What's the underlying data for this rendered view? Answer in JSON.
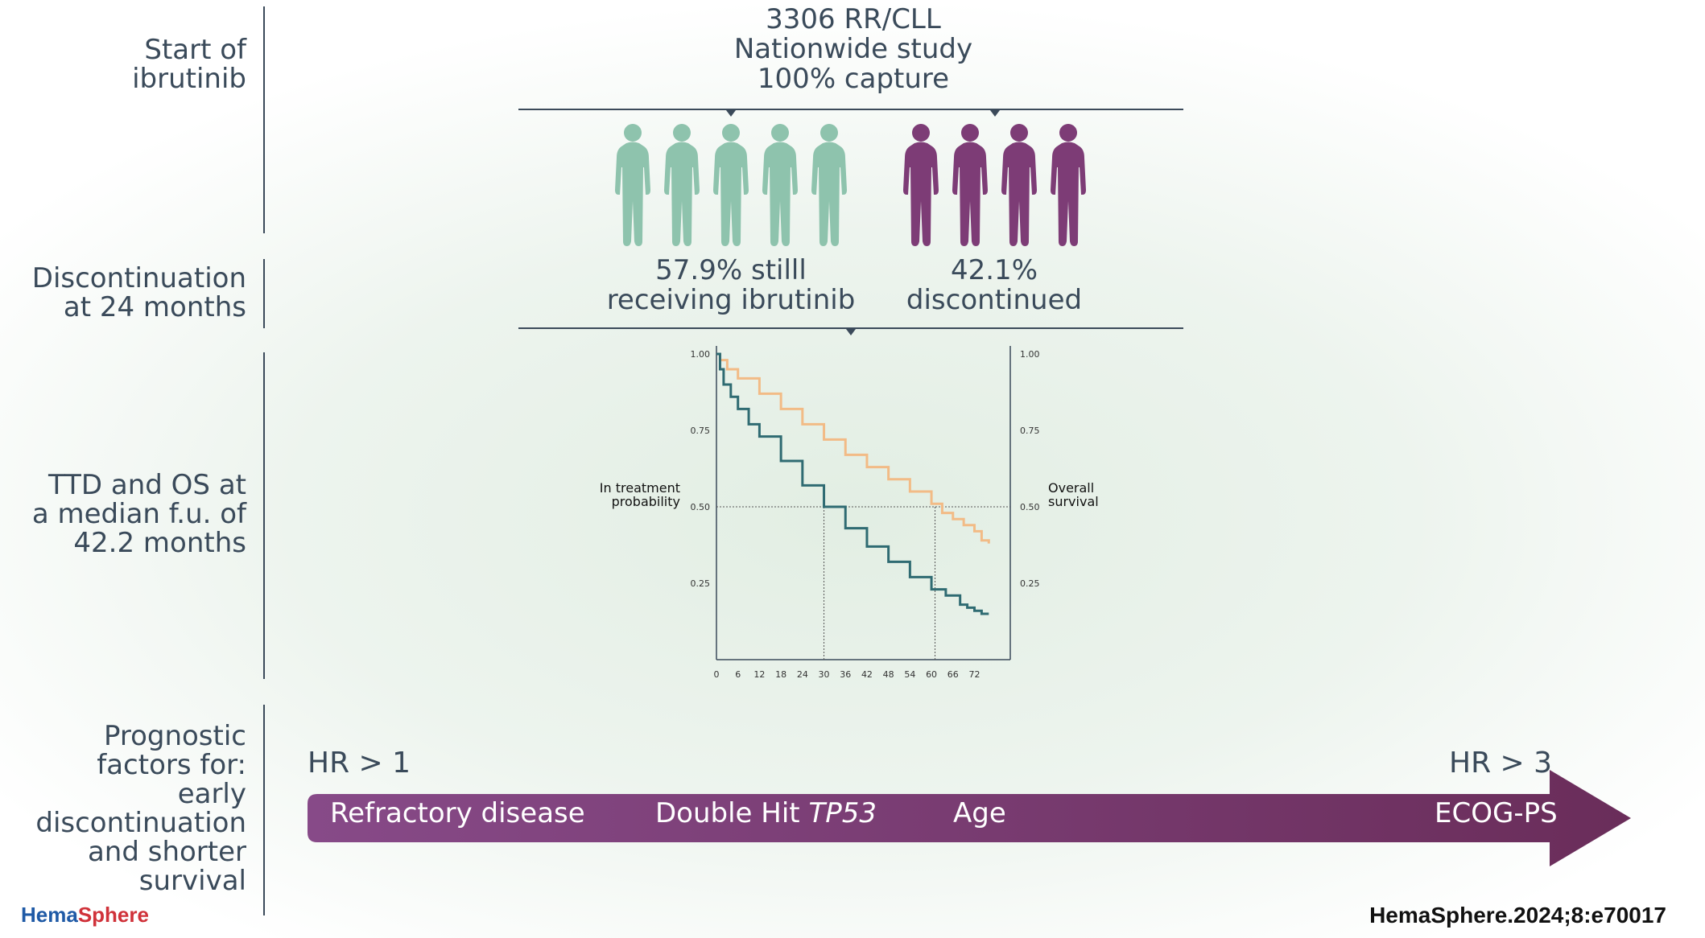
{
  "row_labels": {
    "start": "Start of\nibrutinib",
    "discontinuation": "Discontinuation\nat 24 months",
    "ttd_os": "TTD and OS at\na median f.u. of\n42.2 months",
    "prognostic": "Prognostic\nfactors for:\nearly\ndiscontinuation\nand shorter\nsurvival"
  },
  "study": {
    "line1": "3306 RR/CLL",
    "line2": "Nationwide study",
    "line3": "100% capture"
  },
  "groups": {
    "receiving_pct": "57.9% stilll\nreceiving ibrutinib",
    "discontinued_pct": "42.1%\ndiscontinued",
    "receiving_color": "#8ec3ad",
    "discontinued_color": "#7d3c76",
    "receiving_icons": 5,
    "discontinued_icons": 4
  },
  "chart_data": {
    "type": "line",
    "left_axis_label": "In treatment\nprobability",
    "right_axis_label": "Overall\nsurvival",
    "x_ticks": [
      0,
      6,
      12,
      18,
      24,
      30,
      36,
      42,
      48,
      54,
      60,
      66,
      72
    ],
    "y_ticks": [
      0.25,
      0.5,
      0.75,
      1.0
    ],
    "y_tick_labels": [
      "0.25",
      "0.50",
      "0.75",
      "1.00"
    ],
    "xlim": [
      0,
      82
    ],
    "ylim": [
      0,
      1.0
    ],
    "grid": false,
    "reference_lines": [
      {
        "y": 0.5,
        "x": 30
      },
      {
        "y": 0.5,
        "x": 61
      }
    ],
    "series": [
      {
        "color": "#f2bb86",
        "x": [
          0,
          1,
          3,
          6,
          12,
          18,
          24,
          30,
          36,
          42,
          48,
          54,
          60,
          63,
          66,
          69,
          72,
          74,
          76
        ],
        "y": [
          1.0,
          0.98,
          0.95,
          0.92,
          0.87,
          0.82,
          0.77,
          0.72,
          0.67,
          0.63,
          0.59,
          0.55,
          0.51,
          0.48,
          0.46,
          0.44,
          0.42,
          0.39,
          0.38
        ]
      },
      {
        "color": "#2f6b72",
        "x": [
          0,
          1,
          2,
          4,
          6,
          9,
          12,
          18,
          24,
          30,
          36,
          42,
          48,
          54,
          60,
          64,
          68,
          70,
          72,
          74,
          76
        ],
        "y": [
          1.0,
          0.95,
          0.9,
          0.86,
          0.82,
          0.77,
          0.73,
          0.65,
          0.57,
          0.5,
          0.43,
          0.37,
          0.32,
          0.27,
          0.23,
          0.21,
          0.18,
          0.17,
          0.16,
          0.15,
          0.15
        ]
      }
    ]
  },
  "prognostic": {
    "hr_low": "HR > 1",
    "hr_high": "HR > 3",
    "arrow_color_start": "#874a88",
    "arrow_color_end": "#6a2d5a",
    "factor1": "Refractory disease",
    "factor2_prefix": "Double Hit ",
    "factor2_gene": "TP53",
    "factor3": "Age",
    "factor4": "ECOG-PS"
  },
  "footer": {
    "logo_part1": "Hema",
    "logo_part2": "Sphere",
    "logo_color1": "#1f5aa6",
    "logo_color2": "#d0323a",
    "citation": "HemaSphere.2024;8:e70017"
  }
}
